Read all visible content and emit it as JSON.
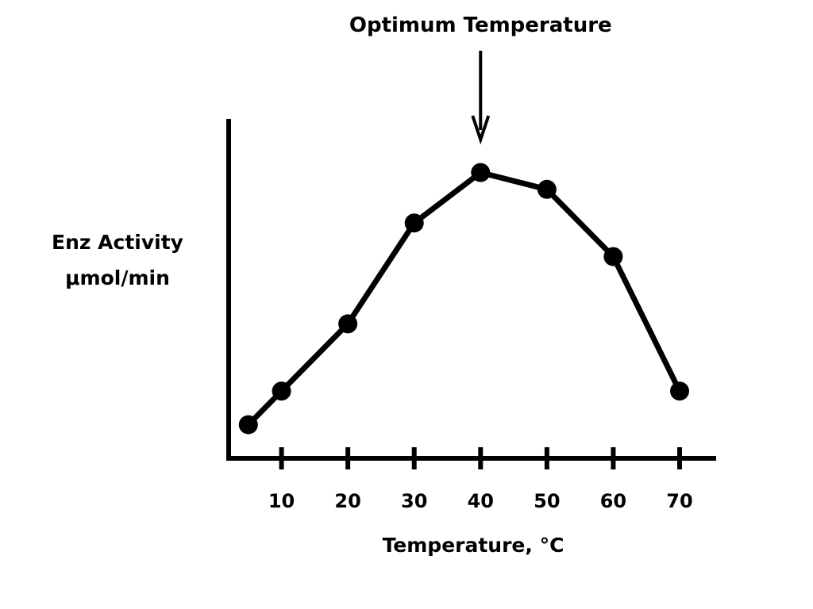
{
  "chart_data": {
    "type": "line",
    "title": "",
    "xlabel": "Temperature, °C",
    "ylabel_lines": [
      "Enz Activity",
      "μmol/min"
    ],
    "x_ticks": [
      10,
      20,
      30,
      40,
      50,
      60,
      70
    ],
    "xlim": [
      2,
      75
    ],
    "ylim": [
      0,
      10
    ],
    "y_ticks_shown": false,
    "grid": false,
    "legend": "none",
    "series": [
      {
        "x": [
          5,
          10,
          20,
          30,
          40,
          50,
          60,
          70
        ],
        "y": [
          1.0,
          2.0,
          4.0,
          7.0,
          8.5,
          8.0,
          6.0,
          2.0
        ]
      }
    ],
    "annotations": [
      {
        "text": "Optimum Temperature",
        "x": 40,
        "arrow": true
      }
    ],
    "colors": {
      "line": "#000000",
      "marker": "#000000",
      "background": "#ffffff"
    }
  }
}
